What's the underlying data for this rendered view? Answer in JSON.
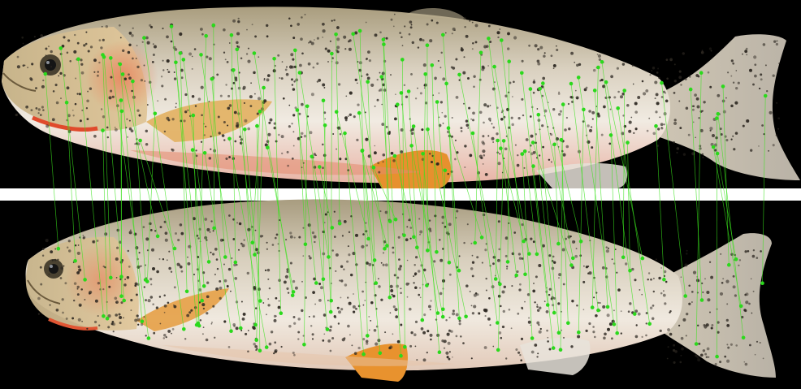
{
  "colors": {
    "background_panels": "#000000",
    "separator": "#ffffff",
    "fish_body_light": "#efe7dc",
    "fish_back": "#b8ab8a",
    "fish_belly_blush": "#e9a99b",
    "fish_gill_red": "#e35a3b",
    "fin_orange": "#e7952f",
    "spot_color": "#2b2620",
    "match_line": "#39e21c",
    "keypoint": "#2bd91c"
  },
  "scene": {
    "description_items": [
      "top-fish-photo",
      "bottom-fish-photo",
      "keypoint-matches"
    ]
  },
  "matches": {
    "count": 120
  }
}
